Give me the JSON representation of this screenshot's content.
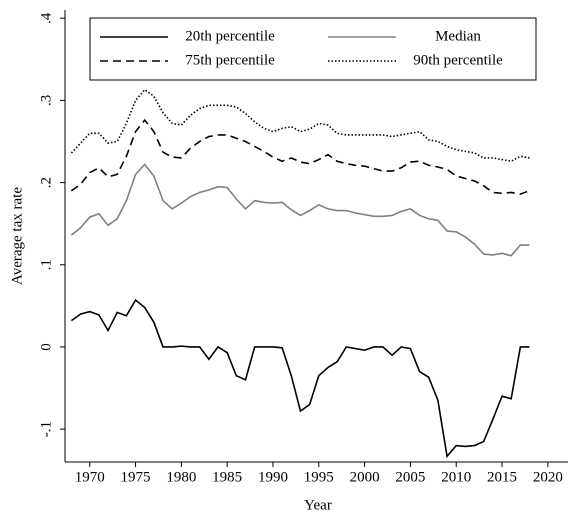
{
  "chart_data": {
    "type": "line",
    "x_label": "Year",
    "y_label": "Average tax rate",
    "x": [
      1968,
      1969,
      1970,
      1971,
      1972,
      1973,
      1974,
      1975,
      1976,
      1977,
      1978,
      1979,
      1980,
      1981,
      1982,
      1983,
      1984,
      1985,
      1986,
      1987,
      1988,
      1989,
      1990,
      1991,
      1992,
      1993,
      1994,
      1995,
      1996,
      1997,
      1998,
      1999,
      2000,
      2001,
      2002,
      2003,
      2004,
      2005,
      2006,
      2007,
      2008,
      2009,
      2010,
      2011,
      2012,
      2013,
      2014,
      2015,
      2016,
      2017,
      2018
    ],
    "series": [
      {
        "name": "20th percentile",
        "color": "#000000",
        "dash": "solid",
        "values": [
          0.032,
          0.04,
          0.043,
          0.039,
          0.02,
          0.042,
          0.038,
          0.057,
          0.048,
          0.03,
          0,
          0,
          0.001,
          0,
          0,
          -0.015,
          0,
          -0.007,
          -0.035,
          -0.04,
          0,
          0,
          0,
          -0.001,
          -0.035,
          -0.078,
          -0.07,
          -0.035,
          -0.025,
          -0.018,
          0,
          -0.002,
          -0.004,
          0,
          0,
          -0.01,
          0,
          -0.002,
          -0.03,
          -0.037,
          -0.065,
          -0.133,
          -0.12,
          -0.121,
          -0.12,
          -0.115,
          -0.088,
          -0.06,
          -0.063,
          0,
          0
        ]
      },
      {
        "name": "Median",
        "color": "#808080",
        "dash": "solid",
        "values": [
          0.136,
          0.145,
          0.158,
          0.162,
          0.148,
          0.156,
          0.178,
          0.21,
          0.222,
          0.208,
          0.178,
          0.168,
          0.175,
          0.183,
          0.188,
          0.191,
          0.195,
          0.194,
          0.18,
          0.168,
          0.178,
          0.176,
          0.175,
          0.176,
          0.167,
          0.16,
          0.166,
          0.173,
          0.168,
          0.166,
          0.166,
          0.163,
          0.161,
          0.159,
          0.159,
          0.16,
          0.165,
          0.168,
          0.16,
          0.156,
          0.154,
          0.141,
          0.14,
          0.134,
          0.125,
          0.113,
          0.112,
          0.114,
          0.111,
          0.124,
          0.124
        ]
      },
      {
        "name": "75th percentile",
        "color": "#000000",
        "dash": "dashed",
        "values": [
          0.19,
          0.198,
          0.212,
          0.218,
          0.207,
          0.21,
          0.232,
          0.262,
          0.276,
          0.262,
          0.237,
          0.231,
          0.23,
          0.242,
          0.25,
          0.256,
          0.258,
          0.258,
          0.254,
          0.25,
          0.244,
          0.238,
          0.231,
          0.226,
          0.23,
          0.225,
          0.223,
          0.228,
          0.234,
          0.226,
          0.223,
          0.221,
          0.22,
          0.217,
          0.214,
          0.214,
          0.218,
          0.225,
          0.226,
          0.221,
          0.219,
          0.216,
          0.208,
          0.205,
          0.202,
          0.196,
          0.188,
          0.187,
          0.188,
          0.186,
          0.19
        ]
      },
      {
        "name": "90th percentile",
        "color": "#000000",
        "dash": "dotted",
        "values": [
          0.236,
          0.248,
          0.26,
          0.26,
          0.248,
          0.25,
          0.272,
          0.3,
          0.313,
          0.305,
          0.285,
          0.272,
          0.27,
          0.282,
          0.29,
          0.294,
          0.294,
          0.294,
          0.292,
          0.284,
          0.274,
          0.266,
          0.262,
          0.266,
          0.268,
          0.262,
          0.265,
          0.272,
          0.27,
          0.26,
          0.258,
          0.258,
          0.258,
          0.258,
          0.258,
          0.256,
          0.258,
          0.26,
          0.262,
          0.252,
          0.25,
          0.244,
          0.24,
          0.238,
          0.236,
          0.23,
          0.23,
          0.228,
          0.226,
          0.232,
          0.23
        ]
      }
    ],
    "xlim": [
      1967.3,
      2022.2
    ],
    "xticks": [
      1970,
      1975,
      1980,
      1985,
      1990,
      1995,
      2000,
      2005,
      2010,
      2015,
      2020
    ],
    "ylim": [
      -0.14,
      0.41
    ],
    "yticks": [
      {
        "value": -0.1,
        "label": "-.1"
      },
      0,
      {
        "value": 0.1,
        "label": ".1"
      },
      {
        "value": 0.2,
        "label": ".2"
      },
      {
        "value": 0.3,
        "label": ".3"
      },
      {
        "value": 0.4,
        "label": ".4"
      }
    ]
  }
}
